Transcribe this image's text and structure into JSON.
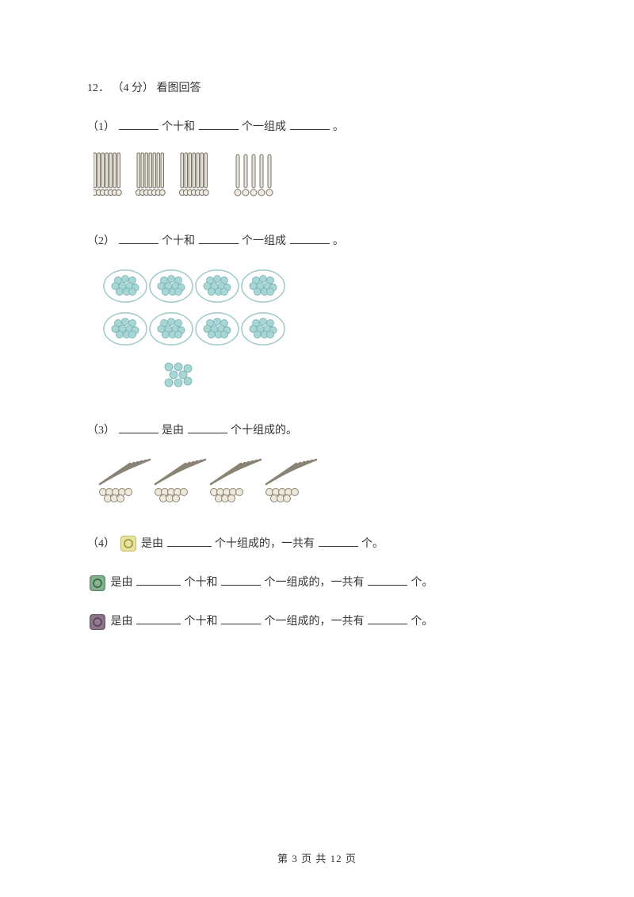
{
  "question": {
    "number": "12．",
    "points": "（4 分）",
    "title": "看图回答"
  },
  "sub1": {
    "label": "（1）",
    "t1": "个十和",
    "t2": "个一组成",
    "t3": "。",
    "svg": {
      "bundle_count": 3,
      "loose_count": 5,
      "stick_stroke": "#7a756b",
      "stick_fill": "#e6e2d8",
      "ring_stroke": "#7a756b"
    }
  },
  "sub2": {
    "label": "（2）",
    "t1": "个十和",
    "t2": "个一组成",
    "t3": "。",
    "svg": {
      "groups_row1": 4,
      "groups_row2": 4,
      "loose_ones": 8,
      "circle_stroke": "#9fc9c9",
      "dot_fill": "#a7d6d6",
      "dot_stroke": "#7aafaf"
    }
  },
  "sub3": {
    "label": "（3）",
    "t1": "是由",
    "t2": "个十组成的。",
    "svg": {
      "bundle_count": 4,
      "rod_stroke": "#8a8374",
      "rod_fill": "#d4cfc0"
    }
  },
  "sub4": {
    "label": "（4）",
    "line1_t1": "是由",
    "line1_t2": "个十组成的，一共有",
    "line1_t3": "个。",
    "line2_t1": "是由",
    "line2_t2": "个十和",
    "line2_t3": "个一组成的，一共有",
    "line2_t4": "个。",
    "line3_t1": "是由",
    "line3_t2": "个十和",
    "line3_t3": "个一组成的，一共有",
    "line3_t4": "个。"
  },
  "footer": {
    "prefix": "第",
    "current": "3",
    "mid": "页 共",
    "total": "12",
    "suffix": "页"
  }
}
